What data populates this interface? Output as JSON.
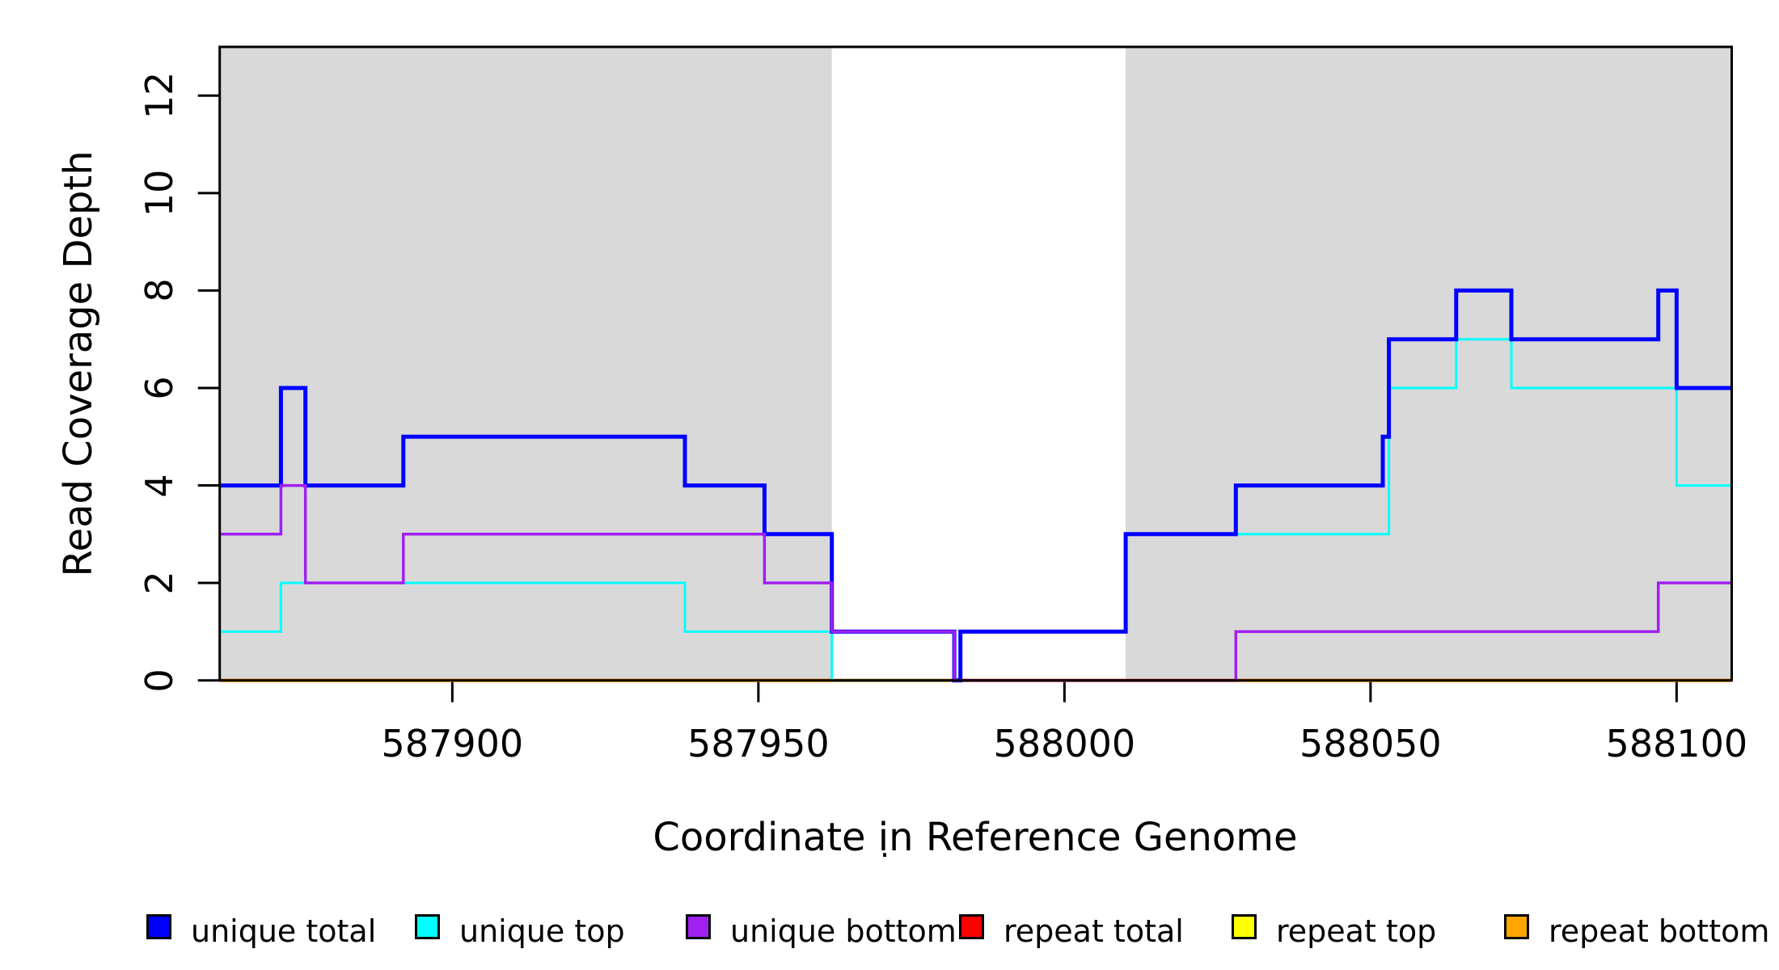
{
  "chart_data": {
    "type": "line",
    "subtype": "step",
    "title": "",
    "xlabel": "Coordinate in Reference Genome",
    "ylabel": "Read Coverage Depth",
    "xlim": [
      587862,
      588109
    ],
    "ylim": [
      0,
      13
    ],
    "xticks": [
      587900,
      587950,
      588000,
      588050,
      588100
    ],
    "yticks": [
      0,
      2,
      4,
      6,
      8,
      10,
      12
    ],
    "grid": false,
    "background_color": "#ffffff",
    "shaded_regions": [
      {
        "x0": 587862,
        "x1": 587962,
        "color": "#D9D9D9"
      },
      {
        "x0": 588010,
        "x1": 588109,
        "color": "#D9D9D9"
      }
    ],
    "series": [
      {
        "name": "repeat total",
        "color": "#FF0000",
        "width": 4,
        "steps": [
          [
            587862,
            0
          ]
        ]
      },
      {
        "name": "repeat top",
        "color": "#FFFF00",
        "width": 3,
        "steps": [
          [
            587862,
            0
          ]
        ]
      },
      {
        "name": "repeat bottom",
        "color": "#FFA500",
        "width": 4,
        "steps": [
          [
            587862,
            0
          ]
        ]
      },
      {
        "name": "unique top",
        "color": "#00FFFF",
        "width": 3,
        "steps": [
          [
            587862,
            1
          ],
          [
            587872,
            2
          ],
          [
            587938,
            1
          ],
          [
            587962,
            0
          ],
          [
            587983,
            1
          ],
          [
            588010,
            3
          ],
          [
            588053,
            6
          ],
          [
            588064,
            7
          ],
          [
            588073,
            6
          ],
          [
            588100,
            4
          ]
        ]
      },
      {
        "name": "unique total",
        "color": "#0000FF",
        "width": 5,
        "steps": [
          [
            587862,
            4
          ],
          [
            587872,
            6
          ],
          [
            587876,
            4
          ],
          [
            587892,
            5
          ],
          [
            587938,
            4
          ],
          [
            587951,
            3
          ],
          [
            587962,
            1
          ],
          [
            587982,
            0
          ],
          [
            587983,
            1
          ],
          [
            588010,
            3
          ],
          [
            588028,
            4
          ],
          [
            588052,
            5
          ],
          [
            588053,
            7
          ],
          [
            588064,
            8
          ],
          [
            588073,
            7
          ],
          [
            588097,
            8
          ],
          [
            588100,
            6
          ]
        ]
      },
      {
        "name": "unique bottom",
        "color": "#A020F0",
        "width": 3.5,
        "steps": [
          [
            587862,
            3
          ],
          [
            587872,
            4
          ],
          [
            587876,
            2
          ],
          [
            587892,
            3
          ],
          [
            587951,
            2
          ],
          [
            587962,
            1
          ],
          [
            587982,
            0
          ],
          [
            588028,
            1
          ],
          [
            588097,
            2
          ]
        ]
      }
    ],
    "legend": {
      "position": "bottom",
      "title": ".",
      "entries": [
        {
          "label": "unique total",
          "color": "#0000FF"
        },
        {
          "label": "unique top",
          "color": "#00FFFF"
        },
        {
          "label": "unique bottom",
          "color": "#A020F0"
        },
        {
          "label": "repeat total",
          "color": "#FF0000"
        },
        {
          "label": "repeat top",
          "color": "#FFFF00"
        },
        {
          "label": "repeat bottom",
          "color": "#FFA500"
        }
      ]
    }
  }
}
